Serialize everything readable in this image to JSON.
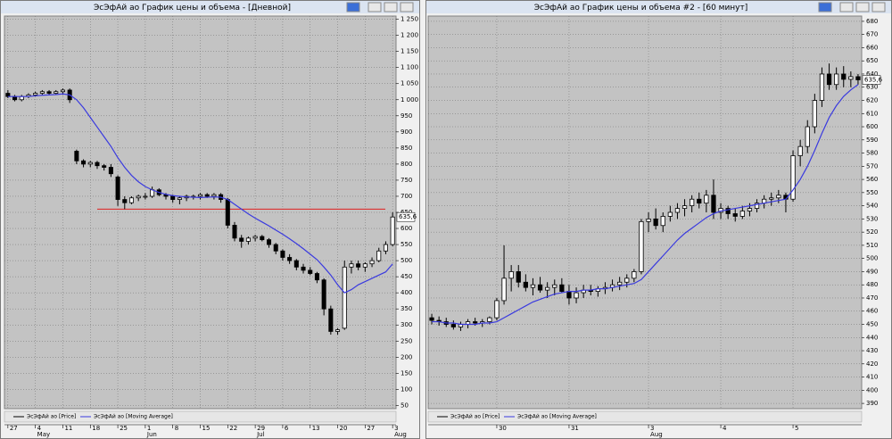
{
  "chart_data": [
    {
      "type": "candlestick",
      "title": "ЭсЭфАй ао График цены и объема - [Дневной]",
      "categories": [
        "27",
        null,
        null,
        null,
        "4",
        null,
        null,
        null,
        "11",
        null,
        null,
        null,
        "18",
        null,
        null,
        null,
        "25",
        null,
        null,
        null,
        "1",
        null,
        null,
        null,
        "8",
        null,
        null,
        null,
        "15",
        null,
        null,
        null,
        "22",
        null,
        null,
        null,
        "29",
        null,
        null,
        null,
        "6",
        null,
        null,
        null,
        "13",
        null,
        null,
        null,
        "20",
        null,
        null,
        null,
        "27",
        null,
        null,
        null,
        "3"
      ],
      "months": [
        null,
        null,
        null,
        null,
        "May",
        null,
        null,
        null,
        null,
        null,
        null,
        null,
        null,
        null,
        null,
        null,
        null,
        null,
        null,
        null,
        "Jun",
        null,
        null,
        null,
        null,
        null,
        null,
        null,
        null,
        null,
        null,
        null,
        null,
        null,
        null,
        null,
        "Jul",
        null,
        null,
        null,
        null,
        null,
        null,
        null,
        null,
        null,
        null,
        null,
        null,
        null,
        null,
        null,
        null,
        null,
        null,
        null,
        "Aug"
      ],
      "ylim": [
        40,
        1260
      ],
      "yticks": [
        50,
        100,
        150,
        200,
        250,
        300,
        350,
        400,
        450,
        500,
        550,
        600,
        650,
        700,
        750,
        800,
        850,
        900,
        950,
        {
          "value": 1000,
          "label": "1 000"
        },
        {
          "value": 1050,
          "label": "1 050"
        },
        {
          "value": 1100,
          "label": "1 100"
        },
        {
          "value": 1150,
          "label": "1 150"
        },
        {
          "value": 1200,
          "label": "1 200"
        },
        {
          "value": 1250,
          "label": "1 250"
        }
      ],
      "grid": true,
      "up_color": "#ffffff",
      "down_color": "#000000",
      "reference_line": {
        "value": 660,
        "color": "#e02020"
      },
      "last_price": {
        "value": 635.6,
        "label": "635,6"
      },
      "series": [
        {
          "name": "ЭсЭфАй ао [Price]",
          "color": "#000000",
          "open": [
            1020,
            1010,
            1000,
            1010,
            1015,
            1020,
            1025,
            1020,
            1025,
            1030,
            840,
            810,
            800,
            805,
            795,
            790,
            760,
            690,
            680,
            695,
            700,
            700,
            720,
            705,
            700,
            690,
            695,
            700,
            700,
            705,
            700,
            705,
            690,
            610,
            570,
            560,
            570,
            575,
            565,
            550,
            530,
            510,
            500,
            480,
            470,
            460,
            440,
            350,
            280,
            290,
            480,
            490,
            480,
            490,
            500,
            530,
            550
          ],
          "high": [
            1030,
            1015,
            1015,
            1020,
            1025,
            1030,
            1030,
            1030,
            1035,
            1035,
            845,
            815,
            810,
            810,
            800,
            800,
            765,
            700,
            700,
            705,
            710,
            730,
            725,
            710,
            705,
            700,
            705,
            705,
            710,
            710,
            710,
            710,
            695,
            620,
            580,
            575,
            580,
            580,
            570,
            555,
            535,
            520,
            505,
            490,
            480,
            465,
            445,
            360,
            290,
            500,
            500,
            500,
            495,
            510,
            540,
            560,
            650
          ],
          "low": [
            1005,
            995,
            995,
            1005,
            1010,
            1015,
            1015,
            1015,
            1015,
            990,
            800,
            790,
            790,
            785,
            780,
            760,
            670,
            660,
            675,
            685,
            690,
            695,
            700,
            690,
            680,
            675,
            685,
            690,
            690,
            695,
            690,
            680,
            600,
            560,
            540,
            550,
            560,
            560,
            540,
            520,
            500,
            490,
            470,
            460,
            455,
            430,
            330,
            270,
            270,
            285,
            460,
            470,
            465,
            480,
            495,
            520,
            545
          ],
          "close": [
            1010,
            1000,
            1010,
            1015,
            1020,
            1025,
            1020,
            1025,
            1030,
            1000,
            810,
            800,
            805,
            795,
            790,
            770,
            690,
            680,
            695,
            700,
            700,
            720,
            705,
            700,
            690,
            695,
            700,
            700,
            705,
            700,
            705,
            690,
            610,
            570,
            560,
            570,
            575,
            565,
            550,
            530,
            510,
            500,
            480,
            470,
            460,
            440,
            350,
            280,
            285,
            480,
            490,
            480,
            490,
            500,
            530,
            550,
            635.6
          ]
        },
        {
          "name": "ЭсЭфАй ао [Moving Average]",
          "color": "#3a3adf",
          "values": [
            1010,
            1010,
            1010,
            1010,
            1012,
            1014,
            1015,
            1016,
            1018,
            1015,
            1000,
            975,
            945,
            915,
            885,
            855,
            820,
            790,
            765,
            745,
            730,
            720,
            712,
            706,
            702,
            700,
            698,
            697,
            696,
            697,
            698,
            697,
            690,
            675,
            660,
            645,
            632,
            620,
            608,
            595,
            582,
            568,
            553,
            537,
            520,
            503,
            480,
            455,
            425,
            400,
            410,
            425,
            435,
            445,
            455,
            465,
            490
          ]
        }
      ]
    },
    {
      "type": "candlestick",
      "title": "ЭсЭфАй ао График цены и объема #2 - [60 минут]",
      "categories": [
        null,
        null,
        null,
        null,
        null,
        null,
        null,
        null,
        null,
        "30",
        null,
        null,
        null,
        null,
        null,
        null,
        null,
        null,
        null,
        "31",
        null,
        null,
        null,
        null,
        null,
        null,
        null,
        null,
        null,
        null,
        "3",
        null,
        null,
        null,
        null,
        null,
        null,
        null,
        null,
        null,
        "4",
        null,
        null,
        null,
        null,
        null,
        null,
        null,
        null,
        null,
        "5",
        null,
        null,
        null,
        null,
        null,
        null,
        null,
        null,
        null
      ],
      "months": [
        null,
        null,
        null,
        null,
        null,
        null,
        null,
        null,
        null,
        null,
        null,
        null,
        null,
        null,
        null,
        null,
        null,
        null,
        null,
        null,
        null,
        null,
        null,
        null,
        null,
        null,
        null,
        null,
        null,
        null,
        "Aug",
        null,
        null,
        null,
        null,
        null,
        null,
        null,
        null,
        null,
        null,
        null,
        null,
        null,
        null,
        null,
        null,
        null,
        null,
        null,
        null,
        null,
        null,
        null,
        null,
        null,
        null,
        null,
        null,
        null
      ],
      "ylim": [
        386,
        684
      ],
      "yticks": [
        390,
        400,
        410,
        420,
        430,
        440,
        450,
        460,
        470,
        480,
        490,
        500,
        510,
        520,
        530,
        540,
        550,
        560,
        570,
        580,
        590,
        600,
        610,
        620,
        630,
        640,
        650,
        660,
        670,
        680
      ],
      "grid": true,
      "up_color": "#ffffff",
      "down_color": "#000000",
      "last_price": {
        "value": 635.6,
        "label": "635,6"
      },
      "series": [
        {
          "name": "ЭсЭфАй ао [Price]",
          "color": "#000000",
          "open": [
            455,
            453,
            452,
            450,
            448,
            450,
            452,
            451,
            452,
            455,
            468,
            485,
            490,
            482,
            478,
            480,
            476,
            478,
            480,
            475,
            470,
            474,
            476,
            475,
            477,
            478,
            480,
            482,
            485,
            490,
            528,
            530,
            525,
            532,
            535,
            538,
            540,
            545,
            542,
            548,
            535,
            538,
            534,
            532,
            536,
            538,
            542,
            545,
            546,
            548,
            545,
            578,
            585,
            600,
            620,
            640,
            632,
            640,
            636,
            638
          ],
          "high": [
            458,
            456,
            455,
            453,
            452,
            454,
            455,
            454,
            456,
            470,
            510,
            495,
            495,
            488,
            485,
            486,
            482,
            484,
            485,
            480,
            478,
            480,
            480,
            479,
            482,
            484,
            486,
            488,
            492,
            530,
            535,
            538,
            535,
            540,
            542,
            545,
            548,
            550,
            552,
            560,
            542,
            540,
            538,
            540,
            542,
            545,
            548,
            550,
            552,
            550,
            582,
            590,
            605,
            625,
            645,
            648,
            645,
            646,
            642,
            640
          ],
          "low": [
            450,
            449,
            448,
            446,
            445,
            447,
            449,
            448,
            450,
            453,
            465,
            475,
            478,
            475,
            472,
            474,
            470,
            472,
            474,
            465,
            466,
            470,
            472,
            471,
            473,
            475,
            476,
            478,
            482,
            488,
            520,
            522,
            520,
            528,
            530,
            532,
            535,
            538,
            535,
            530,
            530,
            530,
            528,
            530,
            532,
            535,
            538,
            540,
            542,
            535,
            543,
            570,
            580,
            595,
            615,
            628,
            628,
            630,
            630,
            632
          ],
          "close": [
            453,
            452,
            450,
            448,
            450,
            452,
            451,
            452,
            455,
            468,
            485,
            490,
            482,
            478,
            480,
            476,
            478,
            480,
            475,
            470,
            474,
            476,
            475,
            477,
            478,
            480,
            482,
            485,
            490,
            528,
            530,
            525,
            532,
            535,
            538,
            540,
            545,
            542,
            548,
            535,
            538,
            534,
            532,
            536,
            538,
            542,
            545,
            546,
            548,
            545,
            578,
            585,
            600,
            620,
            640,
            632,
            640,
            636,
            638,
            635.6
          ]
        },
        {
          "name": "ЭсЭфАй ао [Moving Average]",
          "color": "#3a3adf",
          "values": [
            452,
            452,
            451,
            451,
            450,
            450,
            450,
            451,
            451,
            452,
            455,
            458,
            461,
            464,
            467,
            469,
            471,
            473,
            474,
            475,
            475,
            476,
            476,
            477,
            477,
            478,
            479,
            480,
            481,
            484,
            490,
            496,
            502,
            508,
            514,
            519,
            523,
            527,
            531,
            534,
            536,
            537,
            538,
            539,
            540,
            541,
            542,
            543,
            544,
            545,
            552,
            560,
            570,
            582,
            595,
            607,
            616,
            623,
            628,
            632
          ]
        }
      ]
    }
  ]
}
